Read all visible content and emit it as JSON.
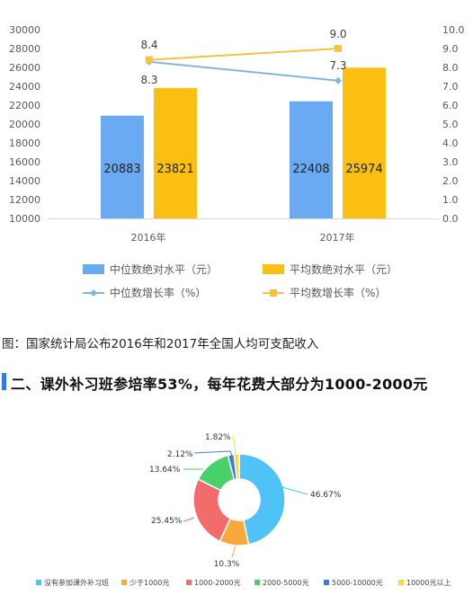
{
  "chart_data": [
    {
      "type": "bar",
      "categories": [
        "2016年",
        "2017年"
      ],
      "series": [
        {
          "name": "中位数绝对水平（元）",
          "values": [
            20883,
            22408
          ],
          "color": "#6aaaf2",
          "axis": "left",
          "kind": "bar"
        },
        {
          "name": "平均数绝对水平（元）",
          "values": [
            23821,
            25974
          ],
          "color": "#fbbf12",
          "axis": "left",
          "kind": "bar"
        },
        {
          "name": "中位数增长率（%）",
          "values": [
            8.3,
            7.3
          ],
          "color": "#83b4e6",
          "axis": "right",
          "kind": "line"
        },
        {
          "name": "平均数增长率（%）",
          "values": [
            8.4,
            9.0
          ],
          "color": "#f5c242",
          "axis": "right",
          "kind": "line"
        }
      ],
      "bar_labels": [
        "20883",
        "23821",
        "22408",
        "25974"
      ],
      "line_labels": {
        "median": [
          "8.3",
          "7.3"
        ],
        "mean": [
          "8.4",
          "9.0"
        ]
      },
      "y_left": {
        "ylim": [
          10000,
          30000
        ],
        "ticks": [
          "10000",
          "12000",
          "14000",
          "16000",
          "18000",
          "20000",
          "22000",
          "24000",
          "26000",
          "28000",
          "30000"
        ]
      },
      "y_right": {
        "ylim": [
          0,
          10
        ],
        "ticks": [
          "0.0",
          "1.0",
          "2.0",
          "3.0",
          "4.0",
          "5.0",
          "6.0",
          "7.0",
          "8.0",
          "9.0",
          "10.0"
        ]
      },
      "legend_position": "bottom",
      "grid": false
    },
    {
      "type": "pie",
      "donut": true,
      "categories": [
        "没有参加课外补习班",
        "少于1000元",
        "1000-2000元",
        "2000-5000元",
        "5000-10000元",
        "10000元以上"
      ],
      "values": [
        46.67,
        10.3,
        25.45,
        13.64,
        2.12,
        1.82
      ],
      "labels": [
        "46.67%",
        "10.3%",
        "25.45%",
        "13.64%",
        "2.12%",
        "1.82%"
      ],
      "colors": [
        "#4fc3f7",
        "#f9a93c",
        "#f26c6c",
        "#48d06b",
        "#3d7fd8",
        "#f7d93e"
      ],
      "legend_position": "bottom"
    }
  ],
  "caption": "图：国家统计局公布2016年和2017年全国人均可支配收入",
  "section_title": "二、课外补习班参培率53%，每年花费大部分为1000-2000元"
}
